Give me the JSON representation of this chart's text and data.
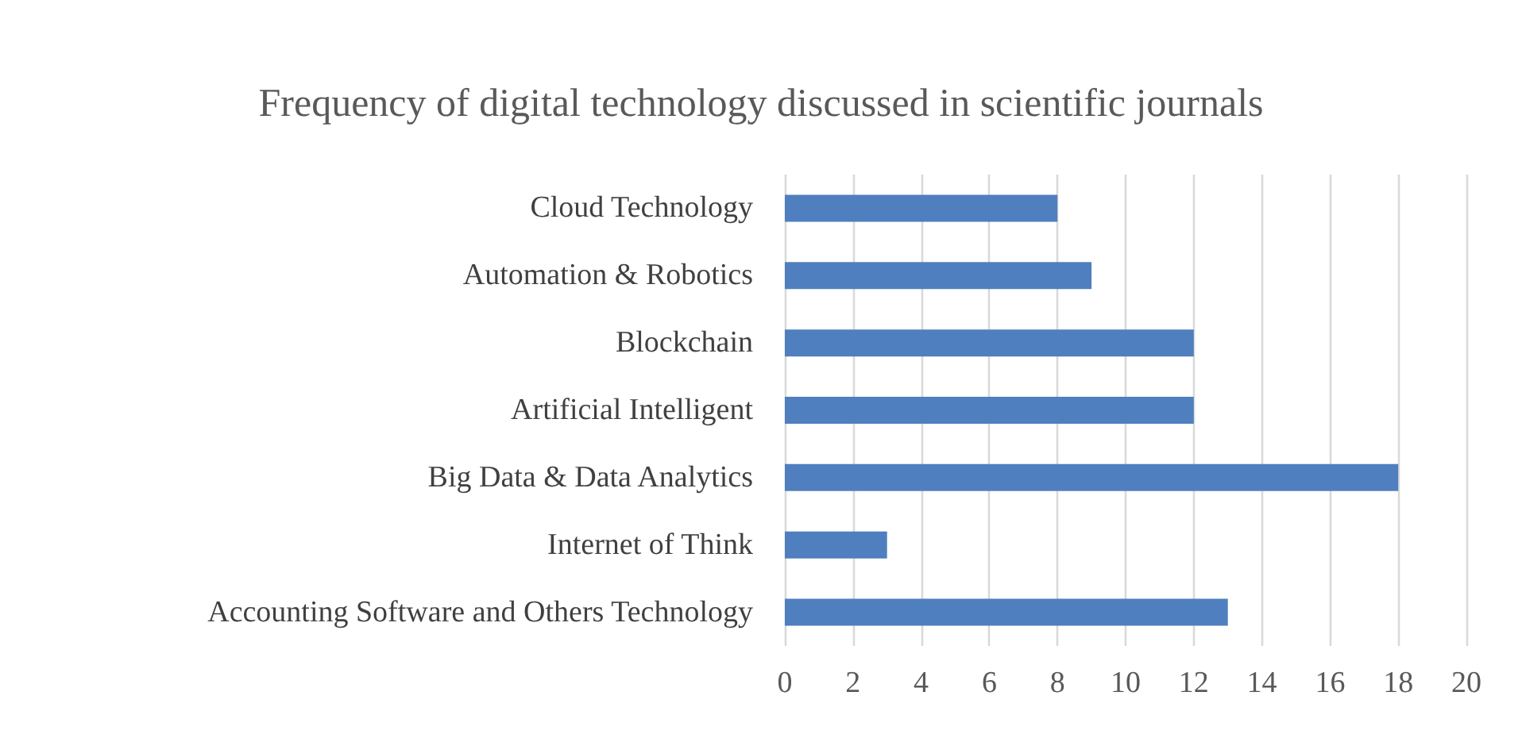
{
  "chart_data": {
    "type": "bar",
    "orientation": "horizontal",
    "title": "Frequency of digital technology discussed in scientific journals",
    "categories": [
      "Cloud Technology",
      "Automation & Robotics",
      "Blockchain",
      "Artificial Intelligent",
      "Big Data & Data Analytics",
      "Internet of Think",
      "Accounting Software and Others Technology"
    ],
    "values": [
      8,
      9,
      12,
      12,
      18,
      3,
      13
    ],
    "color": "#4f7fbe",
    "xlim": [
      0,
      20
    ],
    "xticks": [
      0,
      2,
      4,
      6,
      8,
      10,
      12,
      14,
      16,
      18,
      20
    ],
    "grid": "x"
  }
}
